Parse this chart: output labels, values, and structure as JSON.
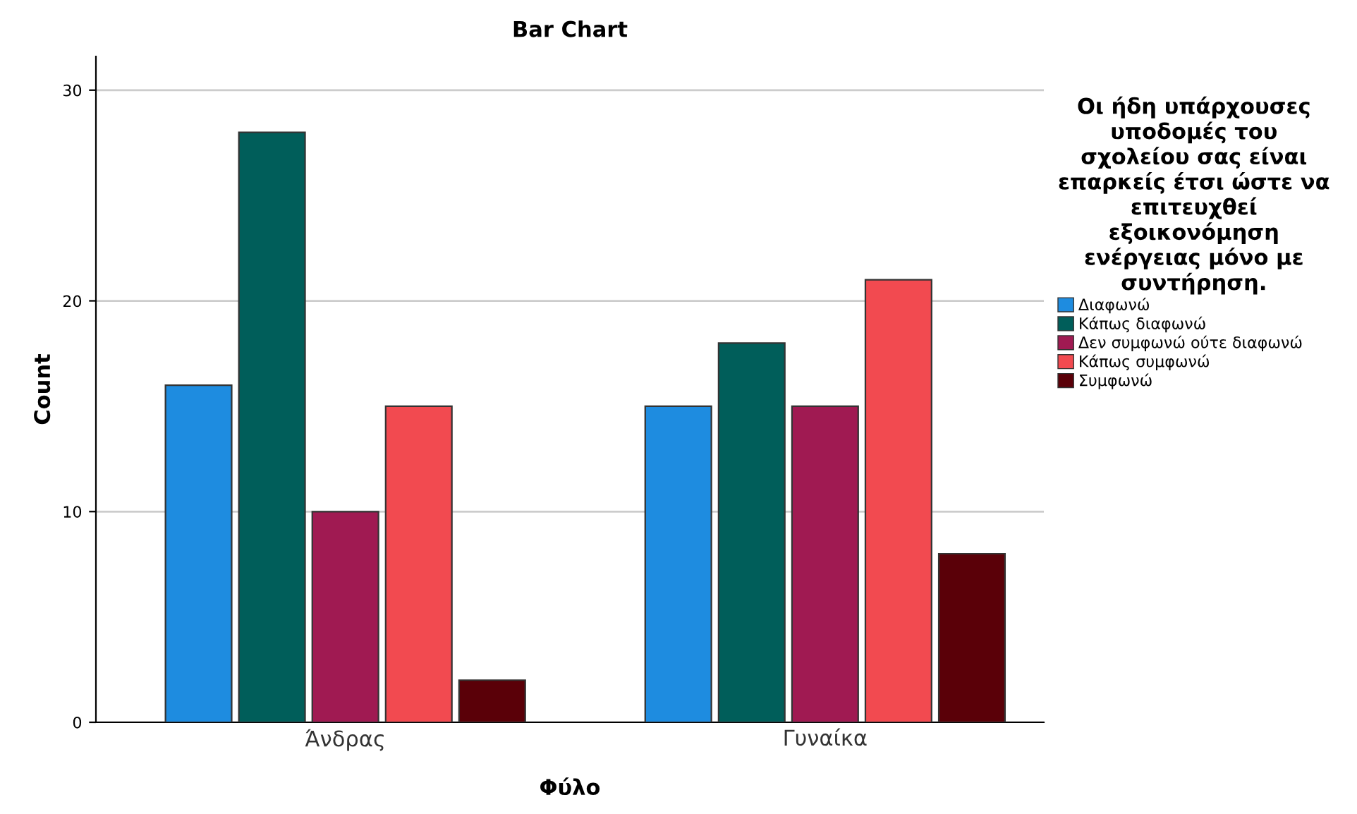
{
  "chart_data": {
    "type": "bar",
    "title": "Bar Chart",
    "xlabel": "Φύλο",
    "ylabel": "Count",
    "legend_title": "Οι ήδη υπάρχουσες\nυποδομές του\nσχολείου σας είναι\nεπαρκείς έτσι ώστε να\nεπιτευχθεί\nεξοικονόμηση\nενέργειας μόνο με\nσυντήρηση.",
    "categories": [
      "Άνδρας",
      "Γυναίκα"
    ],
    "series": [
      {
        "name": "Διαφωνώ",
        "color": "#1e8ce0",
        "values": [
          16,
          15
        ]
      },
      {
        "name": "Κάπως διαφωνώ",
        "color": "#005e5a",
        "values": [
          28,
          18
        ]
      },
      {
        "name": "Δεν συμφωνώ ούτε διαφωνώ",
        "color": "#a01a52",
        "values": [
          10,
          15
        ]
      },
      {
        "name": "Κάπως συμφωνώ",
        "color": "#f24a50",
        "values": [
          15,
          21
        ]
      },
      {
        "name": "Συμφωνώ",
        "color": "#5a0008",
        "values": [
          2,
          8
        ]
      }
    ],
    "ylim": [
      0,
      31.6
    ],
    "yticks": [
      0,
      10,
      20,
      30
    ],
    "grid": "y",
    "legend": "right"
  }
}
